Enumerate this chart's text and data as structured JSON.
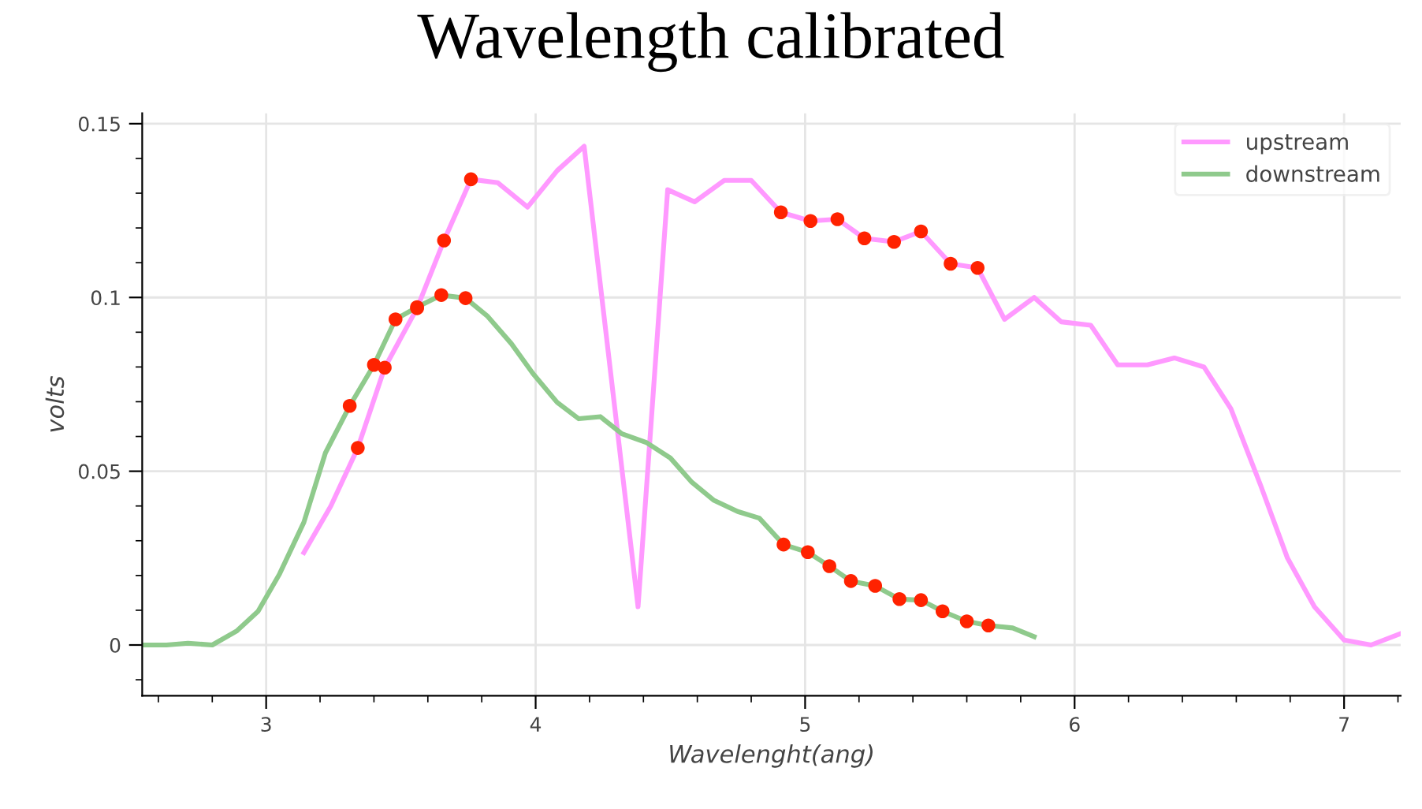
{
  "chart_data": {
    "type": "line",
    "title": "Wavelength calibrated",
    "xlabel": "Wavelenght(ang)",
    "ylabel": "volts",
    "xlim": [
      2.54,
      7.21
    ],
    "ylim": [
      -0.0146,
      0.153
    ],
    "xticks": [
      3,
      4,
      5,
      6,
      7
    ],
    "yticks": [
      0,
      0.05,
      {
        "value": 0.1,
        "label": "0.1"
      },
      0.15
    ],
    "grid": true,
    "legend": "top right",
    "marker": "none",
    "line_style": "solid",
    "series": [
      {
        "name": "upstream",
        "color": "#ff99ff",
        "x": [
          3.14,
          3.24,
          3.34,
          3.44,
          3.56,
          3.66,
          3.76,
          3.86,
          3.97,
          4.08,
          4.18,
          4.38,
          4.49,
          4.59,
          4.7,
          4.8,
          4.91,
          5.02,
          5.12,
          5.22,
          5.33,
          5.43,
          5.54,
          5.64,
          5.74,
          5.85,
          5.95,
          6.06,
          6.16,
          6.27,
          6.37,
          6.48,
          6.58,
          6.69,
          6.79,
          6.89,
          7.0,
          7.1,
          7.21
        ],
        "values": [
          0.0266,
          0.04,
          0.0567,
          0.0798,
          0.0969,
          0.1164,
          0.134,
          0.133,
          0.126,
          0.1365,
          0.1435,
          0.011,
          0.131,
          0.1275,
          0.1337,
          0.1337,
          0.1245,
          0.122,
          0.1225,
          0.117,
          0.116,
          0.119,
          0.1097,
          0.1085,
          0.0937,
          0.1,
          0.093,
          0.092,
          0.0806,
          0.0806,
          0.0826,
          0.08,
          0.068,
          0.046,
          0.025,
          0.011,
          0.0014,
          0.0,
          0.0033
        ]
      },
      {
        "name": "downstream",
        "color": "#8fca8c",
        "x": [
          2.54,
          2.63,
          2.71,
          2.8,
          2.89,
          2.97,
          3.05,
          3.14,
          3.22,
          3.31,
          3.4,
          3.48,
          3.56,
          3.65,
          3.74,
          3.82,
          3.91,
          3.99,
          4.08,
          4.16,
          4.24,
          4.32,
          4.41,
          4.5,
          4.58,
          4.66,
          4.75,
          4.83,
          4.92,
          5.01,
          5.09,
          5.17,
          5.26,
          5.35,
          5.43,
          5.51,
          5.6,
          5.68,
          5.77,
          5.85
        ],
        "values": [
          0.0,
          0.0,
          0.0005,
          0.0,
          0.004,
          0.0097,
          0.0205,
          0.0353,
          0.0553,
          0.0688,
          0.0806,
          0.0937,
          0.0972,
          0.1007,
          0.0998,
          0.0947,
          0.0867,
          0.0781,
          0.0698,
          0.0651,
          0.0657,
          0.0608,
          0.0583,
          0.0538,
          0.0468,
          0.0417,
          0.0384,
          0.0365,
          0.0289,
          0.0267,
          0.0227,
          0.0184,
          0.017,
          0.0132,
          0.0129,
          0.0097,
          0.0068,
          0.0056,
          0.0049,
          0.0024
        ]
      },
      {
        "color": "#ff2200",
        "type": "scatter",
        "marker": "circle",
        "x": [
          3.34,
          3.44,
          3.56,
          3.66,
          3.76,
          4.91,
          5.02,
          5.12,
          5.22,
          5.33,
          5.43,
          5.54,
          5.64,
          3.31,
          3.4,
          3.48,
          3.56,
          3.65,
          3.74,
          4.92,
          5.01,
          5.09,
          5.17,
          5.26,
          5.35,
          5.43,
          5.51,
          5.6,
          5.68
        ],
        "values": [
          0.0567,
          0.0798,
          0.0969,
          0.1164,
          0.134,
          0.1245,
          0.122,
          0.1225,
          0.117,
          0.116,
          0.119,
          0.1097,
          0.1085,
          0.0688,
          0.0806,
          0.0937,
          0.0972,
          0.1007,
          0.0998,
          0.0289,
          0.0267,
          0.0227,
          0.0184,
          0.017,
          0.0132,
          0.0129,
          0.0097,
          0.0068,
          0.0056
        ]
      }
    ]
  }
}
